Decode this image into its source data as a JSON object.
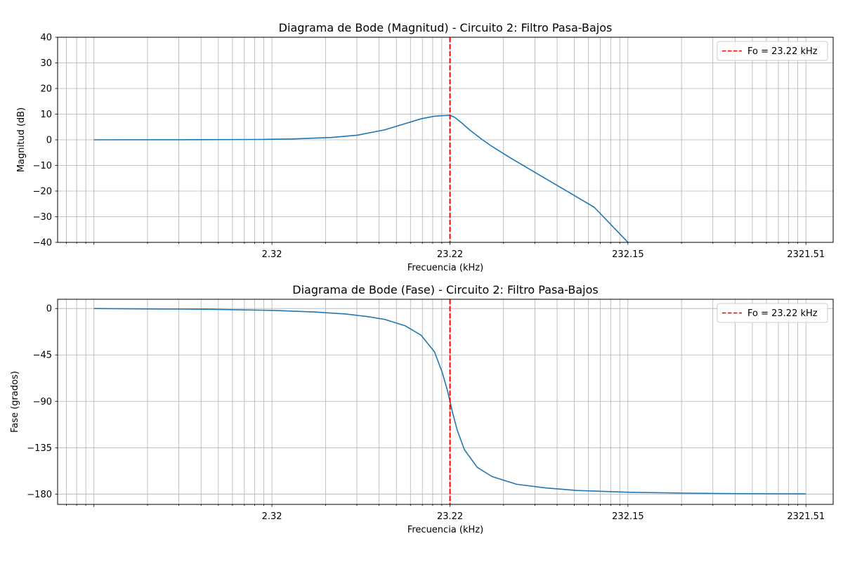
{
  "chart_data": [
    {
      "type": "line",
      "title": "Diagrama de Bode (Magnitud) - Circuito 2: Filtro Pasa-Bajos",
      "xlabel": "Frecuencia (kHz)",
      "ylabel": "Magnitud (dB)",
      "xscale": "log",
      "xlim": [
        0.145,
        3300
      ],
      "ylim": [
        -40,
        40
      ],
      "xticks": [
        2.32,
        23.22,
        232.15,
        2321.51
      ],
      "xtick_labels": [
        "2.32",
        "23.22",
        "232.15",
        "2321.51"
      ],
      "yticks": [
        40,
        30,
        20,
        10,
        0,
        -10,
        -20,
        -30,
        -40
      ],
      "ytick_labels": [
        "40",
        "30",
        "20",
        "10",
        "0",
        "−10",
        "−20",
        "−30",
        "−40"
      ],
      "grid": true,
      "legend": {
        "position": "top-right",
        "entries": [
          "Fo = 23.22 kHz"
        ]
      },
      "series": [
        {
          "color": "#1f77b4",
          "style": "solid",
          "x": [
            0.232,
            0.5,
            1,
            2,
            3,
            5,
            7,
            10,
            13,
            16,
            19,
            21,
            22.5,
            23.22,
            24.5,
            27,
            30,
            35,
            40,
            50,
            70,
            100,
            150,
            232.15
          ],
          "y": [
            0.0,
            0.01,
            0.04,
            0.14,
            0.32,
            0.9,
            1.8,
            3.9,
            6.3,
            8.2,
            9.2,
            9.4,
            9.5,
            9.5,
            8.9,
            6.6,
            3.8,
            0.2,
            -2.6,
            -6.8,
            -12.8,
            -19.1,
            -26.3,
            -40.0
          ]
        },
        {
          "name": "Fo = 23.22 kHz",
          "color": "#ff0000",
          "style": "dashed",
          "vline_x": 23.22
        }
      ]
    },
    {
      "type": "line",
      "title": "Diagrama de Bode (Fase) - Circuito 2: Filtro Pasa-Bajos",
      "xlabel": "Frecuencia (kHz)",
      "ylabel": "Fase (grados)",
      "xscale": "log",
      "xlim": [
        0.145,
        3300
      ],
      "ylim": [
        -190,
        9
      ],
      "xticks": [
        2.32,
        23.22,
        232.15,
        2321.51
      ],
      "xtick_labels": [
        "2.32",
        "23.22",
        "232.15",
        "2321.51"
      ],
      "yticks": [
        0,
        -45,
        -90,
        -135,
        -180
      ],
      "ytick_labels": [
        "0",
        "−45",
        "−90",
        "−135",
        "−180"
      ],
      "grid": true,
      "legend": {
        "position": "top-right",
        "entries": [
          "Fo = 23.22 kHz"
        ]
      },
      "series": [
        {
          "color": "#1f77b4",
          "style": "solid",
          "x": [
            0.232,
            0.5,
            1,
            2.32,
            4,
            6,
            8,
            10,
            13,
            16,
            19,
            21,
            22.5,
            23.22,
            24,
            25.5,
            28,
            33,
            40,
            55,
            80,
            120,
            232.15,
            500,
            1000,
            2321.51
          ],
          "y": [
            0,
            -0.4,
            -0.7,
            -1.8,
            -3.3,
            -5.3,
            -7.8,
            -10.6,
            -16.7,
            -26,
            -42,
            -62,
            -80,
            -90,
            -101,
            -118,
            -137,
            -154,
            -163,
            -170.5,
            -174,
            -176.5,
            -178.2,
            -179.1,
            -179.6,
            -179.8
          ]
        },
        {
          "name": "Fo = 23.22 kHz",
          "color": "#ff0000",
          "style": "dashed",
          "vline_x": 23.22
        }
      ]
    }
  ]
}
